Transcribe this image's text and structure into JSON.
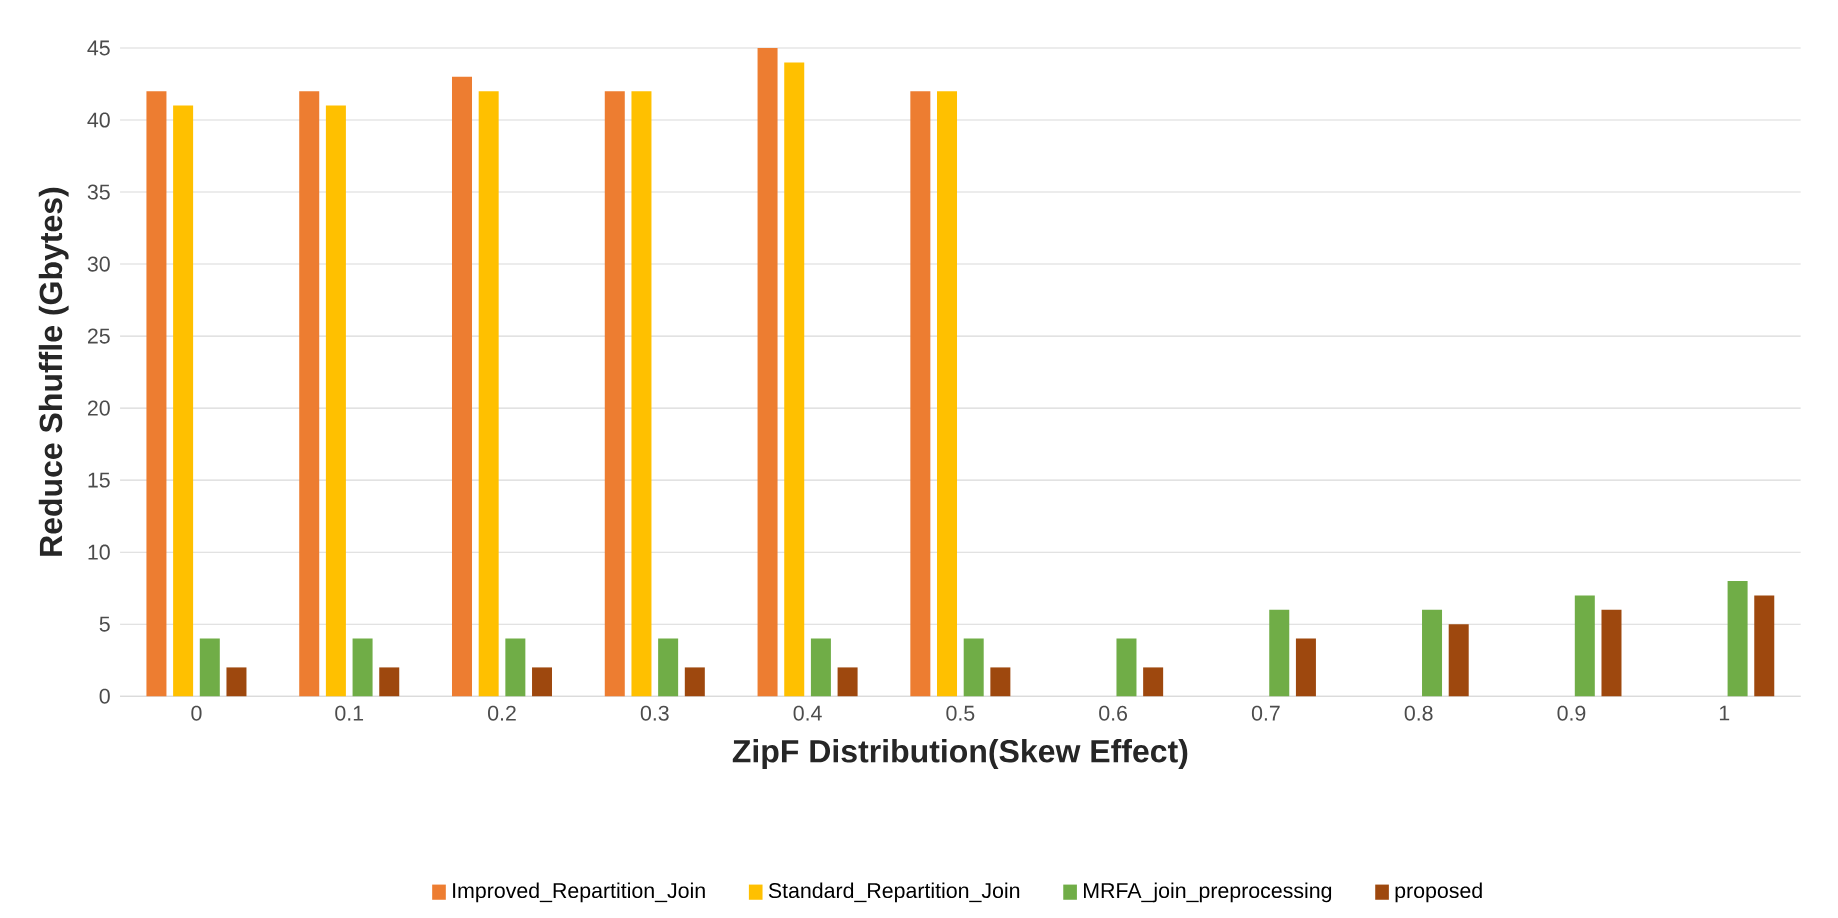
{
  "chart_data": {
    "type": "bar",
    "xlabel": "ZipF Distribution(Skew Effect)",
    "ylabel": "Reduce Shuffle (Gbytes)",
    "categories": [
      "0",
      "0.1",
      "0.2",
      "0.3",
      "0.4",
      "0.5",
      "0.6",
      "0.7",
      "0.8",
      "0.9",
      "1"
    ],
    "series": [
      {
        "name": "Improved_Repartition_Join",
        "color": "#ed7d31",
        "values": [
          42,
          42,
          43,
          42,
          45,
          42,
          null,
          null,
          null,
          null,
          null
        ]
      },
      {
        "name": "Standard_Repartition_Join",
        "color": "#ffc000",
        "values": [
          41,
          41,
          42,
          42,
          44,
          42,
          null,
          null,
          null,
          null,
          null
        ]
      },
      {
        "name": "MRFA_join_preprocessing",
        "color": "#70ad47",
        "values": [
          4,
          4,
          4,
          4,
          4,
          4,
          4,
          6,
          6,
          7,
          8
        ]
      },
      {
        "name": "proposed",
        "color": "#9e480e",
        "values": [
          2,
          2,
          2,
          2,
          2,
          2,
          2,
          4,
          5,
          6,
          7
        ]
      }
    ],
    "ylim": [
      0,
      45
    ],
    "yticks": [
      0,
      5,
      10,
      15,
      20,
      25,
      30,
      35,
      40,
      45
    ],
    "grid": "y",
    "legend": "bottom"
  }
}
